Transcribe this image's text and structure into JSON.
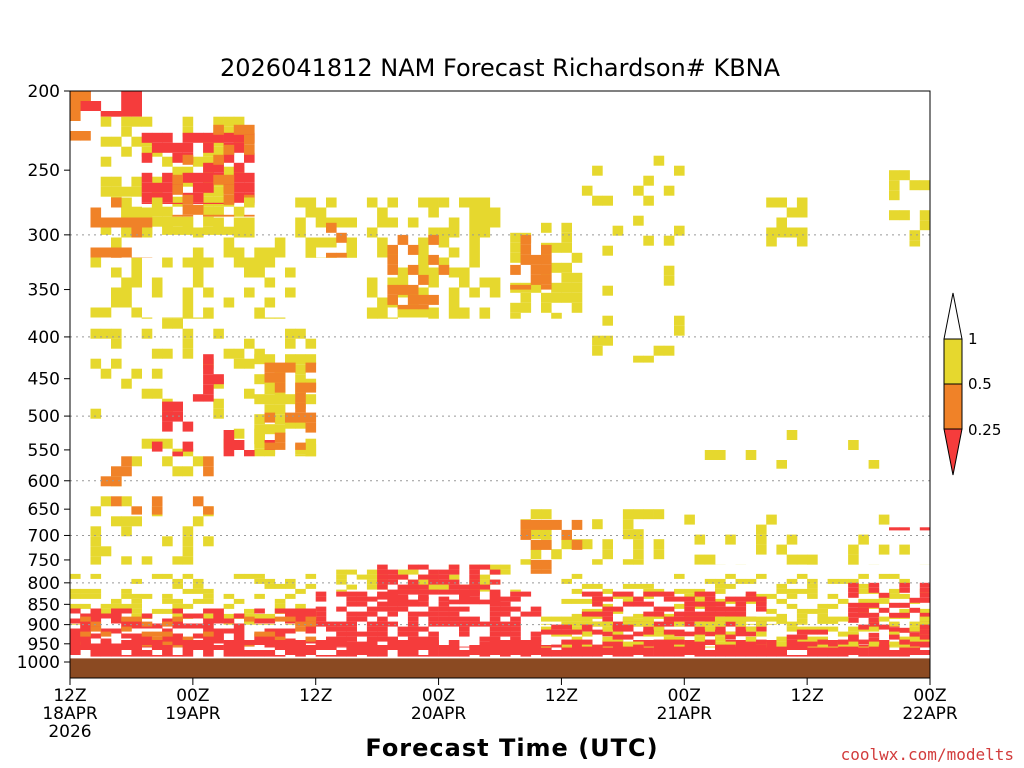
{
  "chart_data": {
    "type": "heatmap",
    "title": "2026041812 NAM Forecast Richardson# KBNA",
    "xlabel": "Forecast Time (UTC)",
    "ylabel": "",
    "credit": "coolwx.com/modelts",
    "x_range_hours": [
      0,
      84
    ],
    "y_range_hpa": [
      200,
      1000
    ],
    "y_scale": "log-pressure",
    "y_ticks": [
      200,
      250,
      300,
      350,
      400,
      450,
      500,
      550,
      600,
      650,
      700,
      750,
      800,
      850,
      900,
      950,
      1000
    ],
    "y_tick_labels": [
      "200",
      "250",
      "300",
      "350",
      "400",
      "450",
      "500",
      "550",
      "600",
      "650",
      "700",
      "750",
      "800",
      "850",
      "900",
      "950",
      "1000"
    ],
    "x_ticks": [
      {
        "hour": 0,
        "line1": "12Z",
        "line2": "18APR",
        "line3": "2026"
      },
      {
        "hour": 12,
        "line1": "00Z",
        "line2": "19APR",
        "line3": ""
      },
      {
        "hour": 24,
        "line1": "12Z",
        "line2": "",
        "line3": ""
      },
      {
        "hour": 36,
        "line1": "00Z",
        "line2": "20APR",
        "line3": ""
      },
      {
        "hour": 48,
        "line1": "12Z",
        "line2": "",
        "line3": ""
      },
      {
        "hour": 60,
        "line1": "00Z",
        "line2": "21APR",
        "line3": ""
      },
      {
        "hour": 72,
        "line1": "12Z",
        "line2": "",
        "line3": ""
      },
      {
        "hour": 84,
        "line1": "00Z",
        "line2": "22APR",
        "line3": ""
      }
    ],
    "legend": {
      "placement": "right",
      "entries": [
        {
          "label": "1",
          "range": "0.5-1.0",
          "color": "#e6d82e"
        },
        {
          "label": "0.5",
          "range": "0.25-0.5",
          "color": "#f08228"
        },
        {
          "label": "0.25",
          "range": "<0.25",
          "color": "#f53c3c"
        }
      ]
    },
    "colors": {
      "low": "#f53c3c",
      "mid": "#f08228",
      "high": "#e6d82e",
      "ground": "#8b4a22"
    },
    "ground_hpa": 990,
    "regions": [
      {
        "category": "low",
        "h0": 1,
        "h1": 7,
        "p0": 200,
        "p1": 215,
        "d": 0.55,
        "seed": 1
      },
      {
        "category": "mid",
        "h0": 0,
        "h1": 3,
        "p0": 200,
        "p1": 230,
        "d": 0.5,
        "seed": 2
      },
      {
        "category": "high",
        "h0": 3,
        "h1": 17,
        "p0": 215,
        "p1": 300,
        "d": 0.45,
        "seed": 3
      },
      {
        "category": "low",
        "h0": 7,
        "h1": 18,
        "p0": 225,
        "p1": 275,
        "d": 0.6,
        "seed": 4
      },
      {
        "category": "mid",
        "h0": 10,
        "h1": 18,
        "p0": 220,
        "p1": 285,
        "d": 0.35,
        "seed": 5
      },
      {
        "category": "high",
        "h0": 2,
        "h1": 22,
        "p0": 270,
        "p1": 380,
        "d": 0.25,
        "seed": 6
      },
      {
        "category": "mid",
        "h0": 2,
        "h1": 8,
        "p0": 270,
        "p1": 320,
        "d": 0.3,
        "seed": 7
      },
      {
        "category": "high",
        "h0": 22,
        "h1": 28,
        "p0": 270,
        "p1": 320,
        "d": 0.5,
        "seed": 8
      },
      {
        "category": "mid",
        "h0": 25,
        "h1": 28,
        "p0": 290,
        "p1": 320,
        "d": 0.35,
        "seed": 9
      },
      {
        "category": "high",
        "h0": 29,
        "h1": 42,
        "p0": 270,
        "p1": 380,
        "d": 0.45,
        "seed": 10
      },
      {
        "category": "mid",
        "h0": 31,
        "h1": 37,
        "p0": 300,
        "p1": 370,
        "d": 0.45,
        "seed": 11
      },
      {
        "category": "high",
        "h0": 43,
        "h1": 50,
        "p0": 290,
        "p1": 380,
        "d": 0.55,
        "seed": 12
      },
      {
        "category": "mid",
        "h0": 43,
        "h1": 47,
        "p0": 300,
        "p1": 350,
        "d": 0.5,
        "seed": 13
      },
      {
        "category": "high",
        "h0": 50,
        "h1": 60,
        "p0": 240,
        "p1": 430,
        "d": 0.12,
        "seed": 14
      },
      {
        "category": "high",
        "h0": 68,
        "h1": 72,
        "p0": 270,
        "p1": 310,
        "d": 0.4,
        "seed": 15
      },
      {
        "category": "high",
        "h0": 80,
        "h1": 84,
        "p0": 250,
        "p1": 310,
        "d": 0.4,
        "seed": 16
      },
      {
        "category": "high",
        "h0": 2,
        "h1": 24,
        "p0": 380,
        "p1": 560,
        "d": 0.18,
        "seed": 17
      },
      {
        "category": "low",
        "h0": 8,
        "h1": 12,
        "p0": 480,
        "p1": 560,
        "d": 0.5,
        "seed": 18
      },
      {
        "category": "low",
        "h0": 12,
        "h1": 15,
        "p0": 420,
        "p1": 480,
        "d": 0.5,
        "seed": 19
      },
      {
        "category": "high",
        "h0": 18,
        "h1": 24,
        "p0": 420,
        "p1": 560,
        "d": 0.45,
        "seed": 20
      },
      {
        "category": "low",
        "h0": 15,
        "h1": 20,
        "p0": 520,
        "p1": 560,
        "d": 0.4,
        "seed": 21
      },
      {
        "category": "mid",
        "h0": 19,
        "h1": 24,
        "p0": 430,
        "p1": 550,
        "d": 0.3,
        "seed": 22
      },
      {
        "category": "high",
        "h0": 60,
        "h1": 84,
        "p0": 520,
        "p1": 580,
        "d": 0.12,
        "seed": 23
      },
      {
        "category": "high",
        "h0": 2,
        "h1": 14,
        "p0": 560,
        "p1": 760,
        "d": 0.25,
        "seed": 24
      },
      {
        "category": "mid",
        "h0": 3,
        "h1": 14,
        "p0": 560,
        "p1": 660,
        "d": 0.15,
        "seed": 25
      },
      {
        "category": "high",
        "h0": 44,
        "h1": 58,
        "p0": 650,
        "p1": 760,
        "d": 0.35,
        "seed": 26
      },
      {
        "category": "mid",
        "h0": 44,
        "h1": 50,
        "p0": 670,
        "p1": 780,
        "d": 0.35,
        "seed": 27
      },
      {
        "category": "high",
        "h0": 60,
        "h1": 84,
        "p0": 660,
        "p1": 760,
        "d": 0.15,
        "seed": 28
      },
      {
        "category": "low",
        "h0": 80,
        "h1": 84,
        "p0": 665,
        "p1": 690,
        "d": 0.7,
        "seed": 29
      },
      {
        "category": "high",
        "h0": 26,
        "h1": 44,
        "p0": 760,
        "p1": 820,
        "d": 0.5,
        "seed": 30
      },
      {
        "category": "low",
        "h0": 30,
        "h1": 42,
        "p0": 760,
        "p1": 850,
        "d": 0.7,
        "seed": 31
      },
      {
        "category": "low",
        "h0": 24,
        "h1": 46,
        "p0": 820,
        "p1": 960,
        "d": 0.55,
        "seed": 32
      },
      {
        "category": "high",
        "h0": 0,
        "h1": 24,
        "p0": 780,
        "p1": 900,
        "d": 0.35,
        "seed": 33
      },
      {
        "category": "low",
        "h0": 0,
        "h1": 24,
        "p0": 860,
        "p1": 960,
        "d": 0.55,
        "seed": 34
      },
      {
        "category": "mid",
        "h0": 0,
        "h1": 24,
        "p0": 880,
        "p1": 960,
        "d": 0.25,
        "seed": 35
      },
      {
        "category": "low",
        "h0": 0,
        "h1": 84,
        "p0": 940,
        "p1": 985,
        "d": 0.8,
        "seed": 36
      },
      {
        "category": "high",
        "h0": 46,
        "h1": 84,
        "p0": 780,
        "p1": 900,
        "d": 0.3,
        "seed": 37
      },
      {
        "category": "low",
        "h0": 50,
        "h1": 68,
        "p0": 820,
        "p1": 930,
        "d": 0.5,
        "seed": 38
      },
      {
        "category": "low",
        "h0": 76,
        "h1": 84,
        "p0": 800,
        "p1": 940,
        "d": 0.6,
        "seed": 39
      },
      {
        "category": "high",
        "h0": 46,
        "h1": 84,
        "p0": 880,
        "p1": 960,
        "d": 0.35,
        "seed": 40
      },
      {
        "category": "low",
        "h0": 46,
        "h1": 84,
        "p0": 900,
        "p1": 960,
        "d": 0.35,
        "seed": 41
      }
    ]
  }
}
